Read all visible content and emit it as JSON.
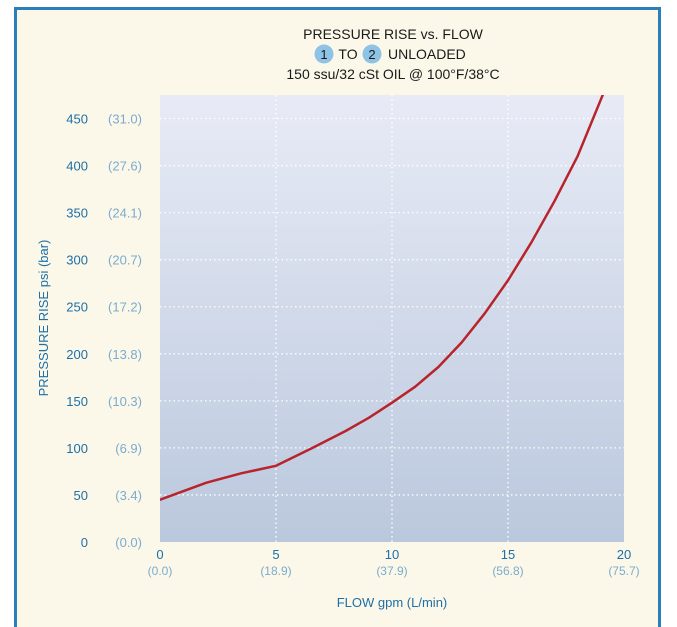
{
  "chart_data": {
    "type": "line",
    "title_line1": "PRESSURE RISE vs. FLOW",
    "title_line2": {
      "from_port": "1",
      "connector": "TO",
      "to_port": "2",
      "suffix": "UNLOADED"
    },
    "subtitle": "150 ssu/32 cSt OIL @ 100°F/38°C",
    "xlabel": "FLOW gpm (L/min)",
    "ylabel": "PRESSURE RISE psi (bar)",
    "xlim": [
      0,
      20
    ],
    "ylim": [
      0,
      475
    ],
    "grid": true,
    "x_ticks": [
      {
        "value": 0,
        "label": "0",
        "sublabel": "(0.0)"
      },
      {
        "value": 5,
        "label": "5",
        "sublabel": "(18.9)"
      },
      {
        "value": 10,
        "label": "10",
        "sublabel": "(37.9)"
      },
      {
        "value": 15,
        "label": "15",
        "sublabel": "(56.8)"
      },
      {
        "value": 20,
        "label": "20",
        "sublabel": "(75.7)"
      }
    ],
    "y_ticks": [
      {
        "value": 0,
        "label": "0",
        "sublabel": "(0.0)"
      },
      {
        "value": 50,
        "label": "50",
        "sublabel": "(3.4)"
      },
      {
        "value": 100,
        "label": "100",
        "sublabel": "(6.9)"
      },
      {
        "value": 150,
        "label": "150",
        "sublabel": "(10.3)"
      },
      {
        "value": 200,
        "label": "200",
        "sublabel": "(13.8)"
      },
      {
        "value": 250,
        "label": "250",
        "sublabel": "(17.2)"
      },
      {
        "value": 300,
        "label": "300",
        "sublabel": "(20.7)"
      },
      {
        "value": 350,
        "label": "350",
        "sublabel": "(24.1)"
      },
      {
        "value": 400,
        "label": "400",
        "sublabel": "(27.6)"
      },
      {
        "value": 450,
        "label": "450",
        "sublabel": "(31.0)"
      }
    ],
    "series": [
      {
        "color": "#b8242c",
        "x": [
          0,
          2,
          3.5,
          5,
          6.5,
          8,
          9,
          10,
          11,
          12,
          13,
          14,
          15,
          16,
          17,
          18,
          19,
          20
        ],
        "y": [
          45,
          63,
          73,
          81,
          99,
          118,
          132,
          148,
          165,
          186,
          212,
          243,
          278,
          318,
          362,
          410,
          470,
          530
        ]
      }
    ],
    "colors": {
      "title_text": "#1a1a1a",
      "axis_text": "#1e6fa6",
      "sublabel_text": "#7aaccf",
      "port_circle": "#8ec3e6",
      "frame_border": "#2a7fb8",
      "plot_bg_top": "#e8ebf6",
      "plot_bg_bottom": "#bac8dd"
    }
  }
}
